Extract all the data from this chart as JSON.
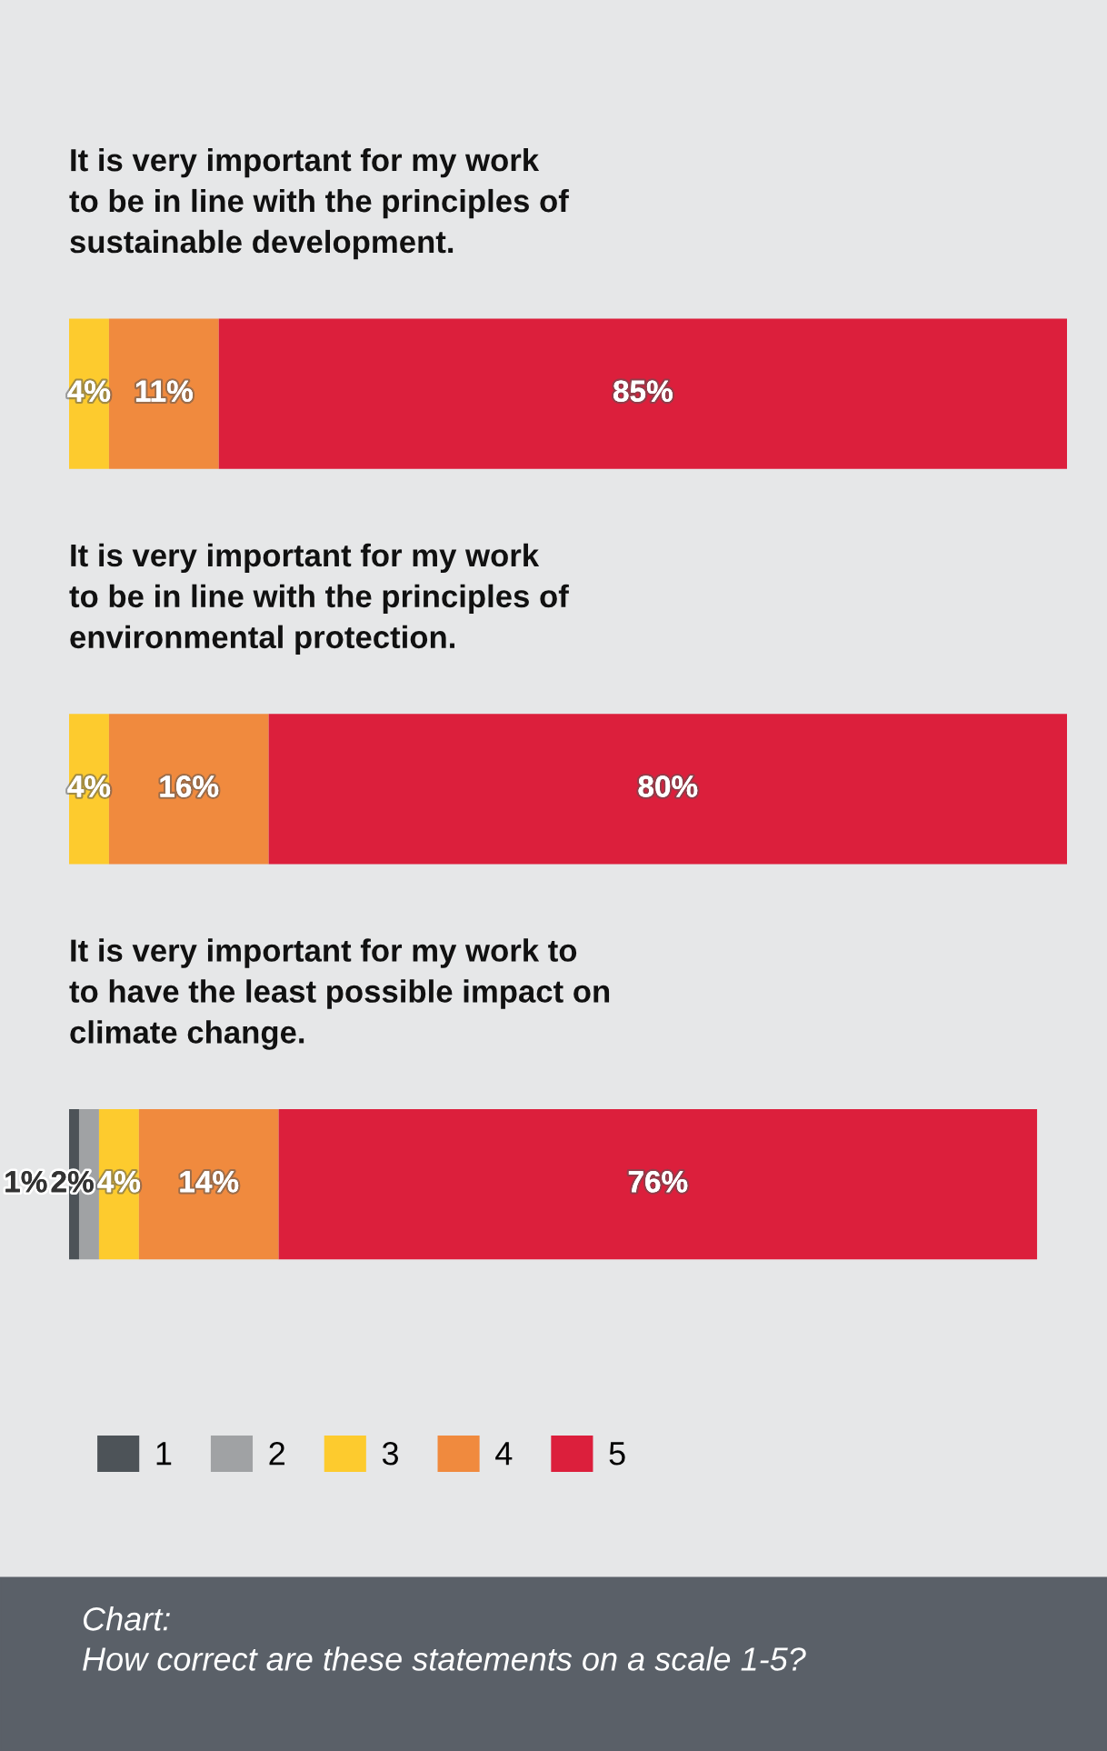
{
  "chart_data": {
    "type": "bar",
    "orientation": "horizontal",
    "stacked": true,
    "categories": [
      "It is very important for my work\nto be in line with the principles of\nsustainable development.",
      "It is very important for my work\nto be in line with the principles of\nenvironmental protection.",
      "It is very important for my work to\nto have the least possible impact on\nclimate change."
    ],
    "series": [
      {
        "name": "1",
        "color": "#4d5358",
        "values": [
          null,
          null,
          1
        ],
        "value_labels": [
          null,
          null,
          "1%"
        ]
      },
      {
        "name": "2",
        "color": "#a0a2a4",
        "values": [
          null,
          null,
          2
        ],
        "value_labels": [
          null,
          null,
          "2%"
        ]
      },
      {
        "name": "3",
        "color": "#fdcb2e",
        "values": [
          4,
          4,
          4
        ],
        "value_labels": [
          "4%",
          "4%",
          "4%"
        ]
      },
      {
        "name": "4",
        "color": "#f08a3e",
        "values": [
          11,
          16,
          14
        ],
        "value_labels": [
          "11%",
          "16%",
          "14%"
        ]
      },
      {
        "name": "5",
        "color": "#dc1f3c",
        "values": [
          85,
          80,
          76
        ],
        "value_labels": [
          "85%",
          "80%",
          "76%"
        ]
      }
    ],
    "xlim": [
      0,
      100
    ],
    "legend": "bottom",
    "annotations": [
      "Chart:\nHow correct are these statements on a scale 1-5?"
    ]
  }
}
